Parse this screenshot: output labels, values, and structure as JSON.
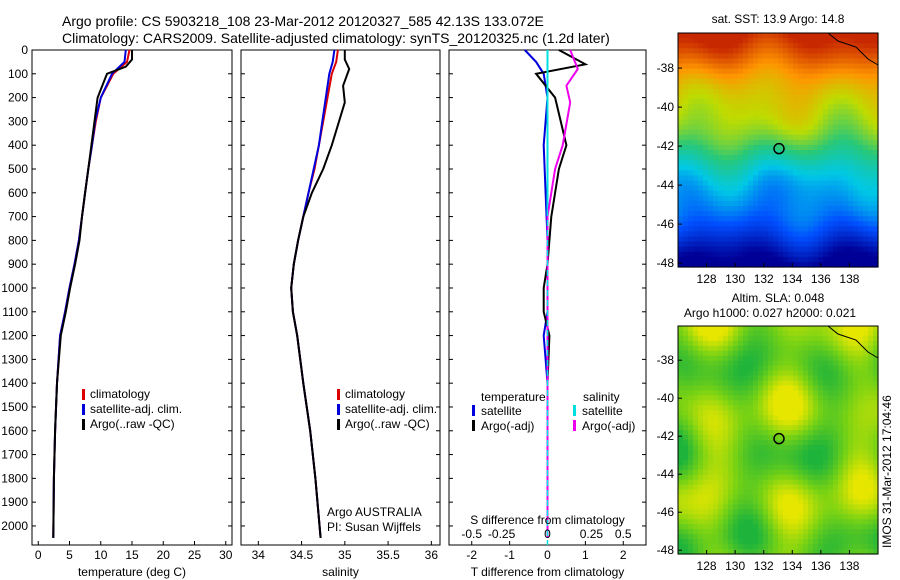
{
  "header": {
    "line1": "Argo profile: CS 5903218_108 23-Mar-2012 20120327_585 42.13S 133.072E",
    "line2": "Climatology: CARS2009. Satellite-adjusted climatology: synTS_20120325.nc (1.2d later)"
  },
  "colors": {
    "climatology": "#dd0000",
    "satellite": "#0000dd",
    "argo": "#000000",
    "sat_salinity": "#00e0e0",
    "argo_salinity": "#ee00ee"
  },
  "footer": {
    "stamp": "IMOS 31-Mar-2012 17:04:46"
  },
  "chart_data": [
    {
      "type": "line",
      "name": "temperature",
      "xlabel": "temperature (deg C)",
      "ylabel": "",
      "xlim": [
        -1,
        31
      ],
      "ylim": [
        2080,
        0
      ],
      "xticks": [
        0,
        5,
        10,
        15,
        20,
        25,
        30
      ],
      "yticks": [
        0,
        100,
        200,
        300,
        400,
        500,
        600,
        700,
        800,
        900,
        1000,
        1100,
        1200,
        1300,
        1400,
        1500,
        1600,
        1700,
        1800,
        1900,
        2000
      ],
      "legend": [
        "climatology",
        "satellite-adj. clim.",
        "Argo(..raw -QC)"
      ],
      "series": [
        {
          "name": "climatology",
          "color": "#dd0000",
          "x": [
            14.6,
            14.2,
            12,
            10,
            9.2,
            8.6,
            8.0,
            7.5,
            7.0,
            6.5,
            5.8,
            5.0,
            4.3,
            3.5,
            3.0,
            2.7,
            2.5,
            2.4
          ],
          "y": [
            0,
            50,
            100,
            200,
            300,
            400,
            500,
            600,
            700,
            800,
            900,
            1000,
            1100,
            1200,
            1400,
            1600,
            1800,
            2050
          ]
        },
        {
          "name": "satellite-adj. clim.",
          "color": "#0000dd",
          "x": [
            14.0,
            13.8,
            11.8,
            10,
            9.1,
            8.6,
            8.0,
            7.5,
            7.0,
            6.5,
            5.8,
            5.0,
            4.3,
            3.5,
            3.0,
            2.7,
            2.5,
            2.4
          ],
          "y": [
            0,
            50,
            100,
            200,
            300,
            400,
            500,
            600,
            700,
            800,
            900,
            1000,
            1100,
            1200,
            1400,
            1600,
            1800,
            2050
          ]
        },
        {
          "name": "Argo(..raw -QC)",
          "color": "#000000",
          "x": [
            15.0,
            15.0,
            14.0,
            11.0,
            9.5,
            8.5,
            8.0,
            7.5,
            7.0,
            6.6,
            5.9,
            5.1,
            4.4,
            3.6,
            3.0,
            2.7,
            2.5,
            2.4
          ],
          "y": [
            0,
            40,
            70,
            100,
            200,
            400,
            500,
            600,
            700,
            800,
            900,
            1000,
            1100,
            1200,
            1400,
            1600,
            1800,
            2050
          ]
        }
      ]
    },
    {
      "type": "line",
      "name": "salinity",
      "xlabel": "salinity",
      "ylabel": "",
      "xlim": [
        33.8,
        36.1
      ],
      "ylim": [
        2080,
        0
      ],
      "xticks": [
        34,
        34.5,
        35,
        35.5,
        36
      ],
      "legend": [
        "climatology",
        "satellite-adj. clim.",
        "Argo(..raw -QC)"
      ],
      "annotation": [
        "Argo AUSTRALIA",
        "PI: Susan Wijffels"
      ],
      "series": [
        {
          "name": "climatology",
          "color": "#dd0000",
          "x": [
            34.92,
            34.9,
            34.85,
            34.8,
            34.75,
            34.7,
            34.65,
            34.58,
            34.52,
            34.46,
            34.41,
            34.38,
            34.4,
            34.45,
            34.52,
            34.6,
            34.66,
            34.72
          ],
          "y": [
            0,
            50,
            100,
            200,
            300,
            400,
            500,
            600,
            700,
            800,
            900,
            1000,
            1100,
            1200,
            1400,
            1600,
            1800,
            2050
          ]
        },
        {
          "name": "satellite-adj. clim.",
          "color": "#0000dd",
          "x": [
            34.88,
            34.86,
            34.82,
            34.78,
            34.74,
            34.7,
            34.64,
            34.58,
            34.52,
            34.46,
            34.41,
            34.38,
            34.4,
            34.45,
            34.52,
            34.6,
            34.66,
            34.72
          ],
          "y": [
            0,
            50,
            100,
            200,
            300,
            400,
            500,
            600,
            700,
            800,
            900,
            1000,
            1100,
            1200,
            1400,
            1600,
            1800,
            2050
          ]
        },
        {
          "name": "Argo(..raw -QC)",
          "color": "#000000",
          "x": [
            35.0,
            35.0,
            35.05,
            34.98,
            35.0,
            34.85,
            34.75,
            34.62,
            34.52,
            34.46,
            34.41,
            34.38,
            34.4,
            34.45,
            34.52,
            34.6,
            34.66,
            34.72
          ],
          "y": [
            0,
            40,
            80,
            150,
            220,
            400,
            500,
            600,
            700,
            800,
            900,
            1000,
            1100,
            1200,
            1400,
            1600,
            1800,
            2050
          ]
        }
      ]
    },
    {
      "type": "line",
      "name": "differences",
      "xlabel": "T difference from climatology",
      "xlabel_top": "S difference from climatology",
      "xlim": [
        -2.6,
        2.6
      ],
      "ylim": [
        2080,
        0
      ],
      "xticks": [
        -2,
        -1,
        0,
        1,
        2
      ],
      "xticks_s": [
        "-0.5",
        "-0.25",
        "0",
        "0.25",
        "0.5"
      ],
      "legend_t": {
        "title": "temperature",
        "items": [
          "satellite",
          "Argo(-adj)"
        ]
      },
      "legend_s": {
        "title": "salinity",
        "items": [
          "satellite",
          "Argo(-adj)"
        ]
      },
      "series": [
        {
          "name": "satellite",
          "color": "#0000dd",
          "x": [
            -0.6,
            -0.3,
            -0.1,
            0,
            -0.1,
            -0.05,
            0,
            0,
            0,
            0,
            -0.1,
            0,
            0,
            0
          ],
          "y": [
            0,
            50,
            100,
            200,
            400,
            600,
            800,
            900,
            1000,
            1100,
            1200,
            1400,
            1800,
            2050
          ]
        },
        {
          "name": "Argo(-adj)",
          "color": "#000000",
          "x": [
            0.3,
            1.0,
            -0.3,
            0.2,
            0.5,
            0.3,
            0.1,
            0,
            -0.1,
            -0.1,
            0.05,
            0,
            0,
            0
          ],
          "y": [
            0,
            60,
            100,
            200,
            400,
            500,
            700,
            900,
            1000,
            1100,
            1200,
            1400,
            1800,
            2050
          ]
        },
        {
          "name": "satellite S",
          "color": "#00e0e0",
          "x": [
            0,
            0,
            0,
            0,
            0,
            0,
            0,
            0,
            0,
            0
          ],
          "y": [
            0,
            100,
            200,
            400,
            600,
            800,
            1000,
            1400,
            1800,
            2050
          ]
        },
        {
          "name": "Argo(-adj) S",
          "color": "#ee00ee",
          "x": [
            0.6,
            0.8,
            0.5,
            0.6,
            0.4,
            0.2,
            0,
            0,
            0,
            0
          ],
          "y": [
            0,
            80,
            150,
            220,
            400,
            500,
            700,
            1000,
            1500,
            2050
          ]
        }
      ]
    },
    {
      "type": "heatmap",
      "name": "sst-map",
      "title": "sat. SST: 13.9  Argo: 14.8",
      "xlim": [
        126,
        140
      ],
      "ylim": [
        -48.2,
        -36.2
      ],
      "xticks": [
        128,
        130,
        132,
        134,
        136,
        138
      ],
      "yticks": [
        -38,
        -40,
        -42,
        -44,
        -46,
        -48
      ],
      "marker": [
        133.07,
        -42.13
      ]
    },
    {
      "type": "heatmap",
      "name": "sla-map",
      "title": "Altim. SLA: 0.048",
      "subtitle": "Argo h1000: 0.027 h2000: 0.021",
      "xlim": [
        126,
        140
      ],
      "ylim": [
        -48.2,
        -36.2
      ],
      "xticks": [
        128,
        130,
        132,
        134,
        136,
        138
      ],
      "yticks": [
        -38,
        -40,
        -42,
        -44,
        -46,
        -48
      ],
      "marker": [
        133.07,
        -42.13
      ]
    }
  ]
}
